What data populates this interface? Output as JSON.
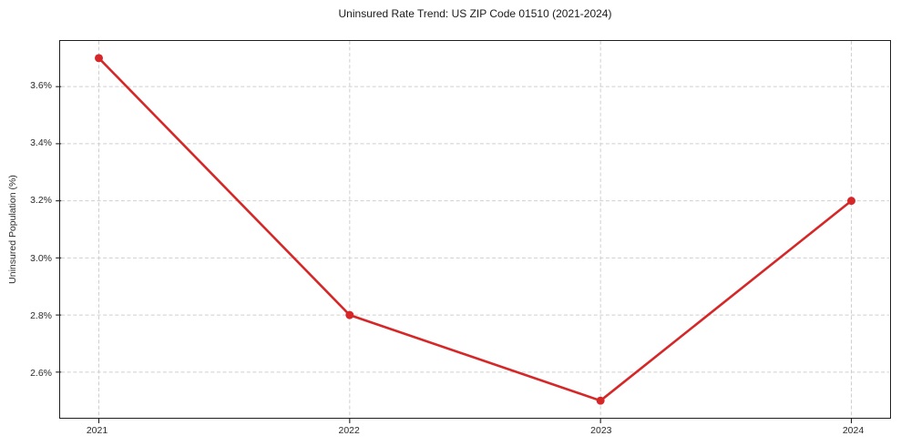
{
  "title": "Uninsured Rate Trend: US ZIP Code 01510 (2021-2024)",
  "chart_data": {
    "type": "line",
    "title": "Uninsured Rate Trend: US ZIP Code 01510 (2021-2024)",
    "xlabel": "",
    "ylabel": "Uninsured Population (%)",
    "x": [
      2021,
      2022,
      2023,
      2024
    ],
    "series": [
      {
        "name": "Uninsured Rate",
        "values": [
          3.7,
          2.8,
          2.5,
          3.2
        ]
      }
    ],
    "xticks": [
      2021,
      2022,
      2023,
      2024
    ],
    "xtick_labels": [
      "2021",
      "2022",
      "2023",
      "2024"
    ],
    "yticks": [
      2.6,
      2.8,
      3.0,
      3.2,
      3.4,
      3.6
    ],
    "ytick_labels": [
      "2.6%",
      "2.8%",
      "3.0%",
      "3.2%",
      "3.4%",
      "3.6%"
    ],
    "xlim": [
      2020.85,
      2024.15
    ],
    "ylim": [
      2.44,
      3.76
    ],
    "grid": true,
    "legend": "none",
    "line_color": "#d62728",
    "marker": "circle",
    "grid_color": "#cfcfcf",
    "background_color": "#ffffff"
  }
}
